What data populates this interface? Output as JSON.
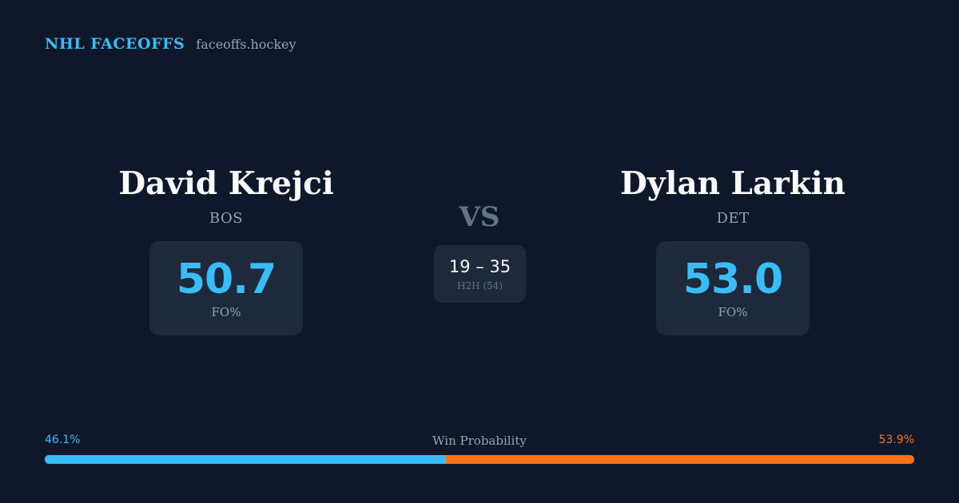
{
  "brand": {
    "name": "NHL FACEOFFS",
    "domain": "faceoffs.hockey"
  },
  "player_left": {
    "name": "David Krejci",
    "team": "BOS",
    "fo_value": "50.7",
    "fo_label": "FO%"
  },
  "player_right": {
    "name": "Dylan Larkin",
    "team": "DET",
    "fo_value": "53.0",
    "fo_label": "FO%"
  },
  "versus": {
    "label": "VS",
    "h2h_score": "19 – 35",
    "h2h_label": "H2H (54)"
  },
  "win_probability": {
    "title": "Win Probability",
    "left_label": "46.1%",
    "right_label": "53.9%",
    "left_fraction": 0.461,
    "right_fraction": 0.539
  },
  "colors": {
    "background": "#0f172a",
    "card": "#1e293b",
    "accent_left": "#38bdf8",
    "accent_right": "#f97316"
  }
}
